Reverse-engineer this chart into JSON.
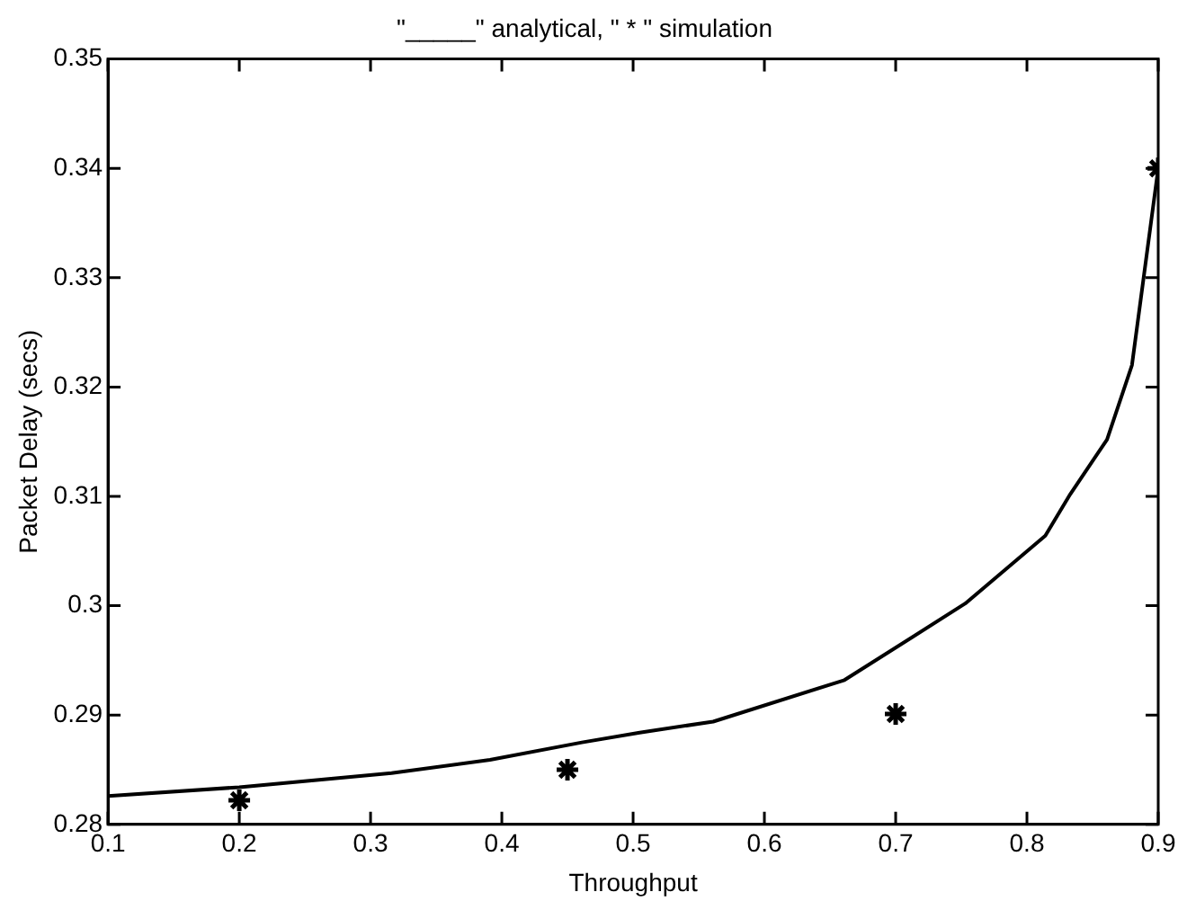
{
  "chart_data": {
    "type": "line",
    "title": "\"_____\" analytical, \" * \" simulation",
    "xlabel": "Throughput",
    "ylabel": "Packet Delay (secs)",
    "xlim": [
      0.1,
      0.9
    ],
    "ylim": [
      0.28,
      0.35
    ],
    "xticks": [
      0.1,
      0.2,
      0.3,
      0.4,
      0.5,
      0.6,
      0.7,
      0.8,
      0.9
    ],
    "yticks": [
      0.28,
      0.29,
      0.3,
      0.31,
      0.32,
      0.33,
      0.34,
      0.35
    ],
    "grid": false,
    "legend": false,
    "series": [
      {
        "color": "#000000",
        "marker": "none",
        "line_style": "solid",
        "x": [
          0.1,
          0.2,
          0.316,
          0.391,
          0.461,
          0.505,
          0.561,
          0.661,
          0.753,
          0.814,
          0.833,
          0.861,
          0.88,
          0.9
        ],
        "values": [
          0.2826,
          0.2834,
          0.2847,
          0.2859,
          0.2875,
          0.2884,
          0.2894,
          0.2932,
          0.3002,
          0.3064,
          0.3102,
          0.3152,
          0.322,
          0.34
        ]
      },
      {
        "type": "scatter",
        "color": "#000000",
        "marker": "cross",
        "x": [
          0.2,
          0.45,
          0.7,
          0.9
        ],
        "values": [
          0.2822,
          0.285,
          0.2901,
          0.34
        ]
      }
    ]
  }
}
